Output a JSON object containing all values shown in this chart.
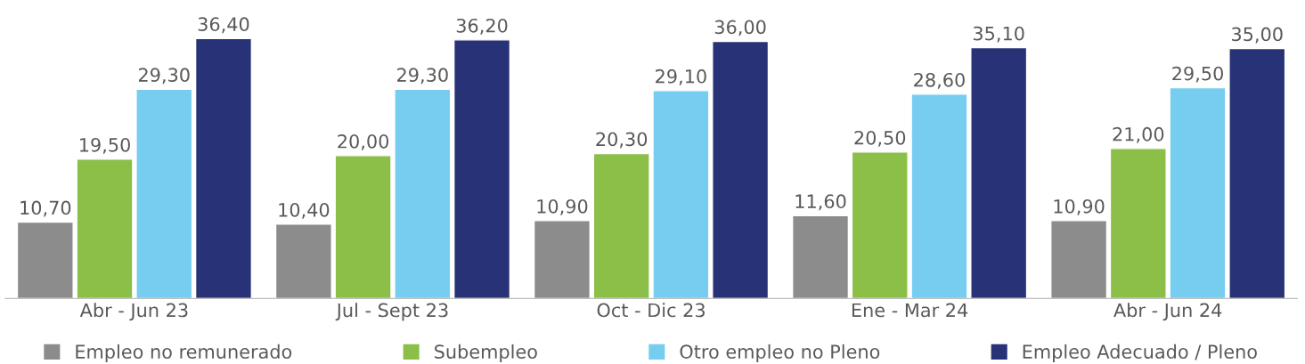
{
  "chart_data": {
    "type": "bar",
    "categories": [
      "Abr - Jun 23",
      "Jul - Sept 23",
      "Oct - Dic 23",
      "Ene - Mar 24",
      "Abr - Jun 24"
    ],
    "series": [
      {
        "name": "Empleo no remunerado",
        "color": "#8c8c8c",
        "values": [
          10.7,
          10.4,
          10.9,
          11.6,
          10.9
        ],
        "value_labels": [
          "10,70",
          "10,40",
          "10,90",
          "11,60",
          "10,90"
        ]
      },
      {
        "name": "Subempleo",
        "color": "#8bbf48",
        "values": [
          19.5,
          20.0,
          20.3,
          20.5,
          21.0
        ],
        "value_labels": [
          "19,50",
          "20,00",
          "20,30",
          "20,50",
          "21,00"
        ]
      },
      {
        "name": "Otro empleo no Pleno",
        "color": "#76cdf0",
        "values": [
          29.3,
          29.3,
          29.1,
          28.6,
          29.5
        ],
        "value_labels": [
          "29,30",
          "29,30",
          "29,10",
          "28,60",
          "29,50"
        ]
      },
      {
        "name": "Empleo Adecuado / Pleno",
        "color": "#283276",
        "values": [
          36.4,
          36.2,
          36.0,
          35.1,
          35.0
        ],
        "value_labels": [
          "36,40",
          "36,20",
          "36,00",
          "35,10",
          "35,00"
        ]
      }
    ],
    "legend": "bottom",
    "grid": false,
    "tick_labels": "x"
  }
}
